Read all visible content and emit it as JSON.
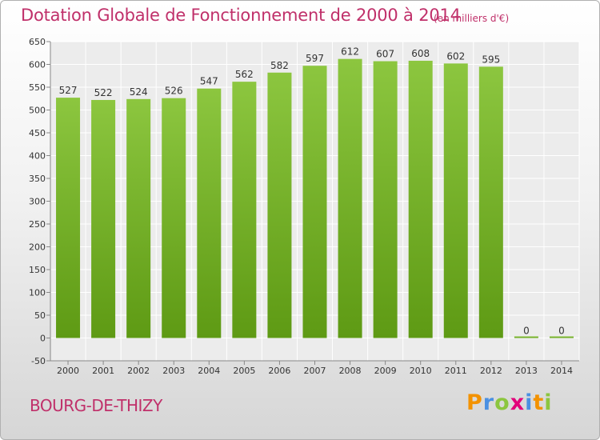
{
  "chart_data": {
    "type": "bar",
    "title": "Dotation Globale de Fonctionnement de 2000 à 2014",
    "subtitle": "(en milliers d'€)",
    "categories": [
      "2000",
      "2001",
      "2002",
      "2003",
      "2004",
      "2005",
      "2006",
      "2007",
      "2008",
      "2009",
      "2010",
      "2011",
      "2012",
      "2013",
      "2014"
    ],
    "values": [
      527,
      522,
      524,
      526,
      547,
      562,
      582,
      597,
      612,
      607,
      608,
      602,
      595,
      0,
      0
    ],
    "ylim": [
      -50,
      650
    ],
    "yticks": [
      -50,
      0,
      50,
      100,
      150,
      200,
      250,
      300,
      350,
      400,
      450,
      500,
      550,
      600,
      650
    ],
    "xlabel": "",
    "ylabel": "",
    "grid": true,
    "bar_color": "#8cc63f",
    "bar_color_dark": "#5e9a14"
  },
  "footer": {
    "commune": "BOURG-DE-THIZY",
    "brand": [
      "P",
      "r",
      "o",
      "x",
      "i",
      "t",
      "i"
    ],
    "brand_colors": [
      "#f39200",
      "#4a90e2",
      "#8cc63f",
      "#e2007a",
      "#4a90e2",
      "#f39200",
      "#8cc63f"
    ]
  }
}
